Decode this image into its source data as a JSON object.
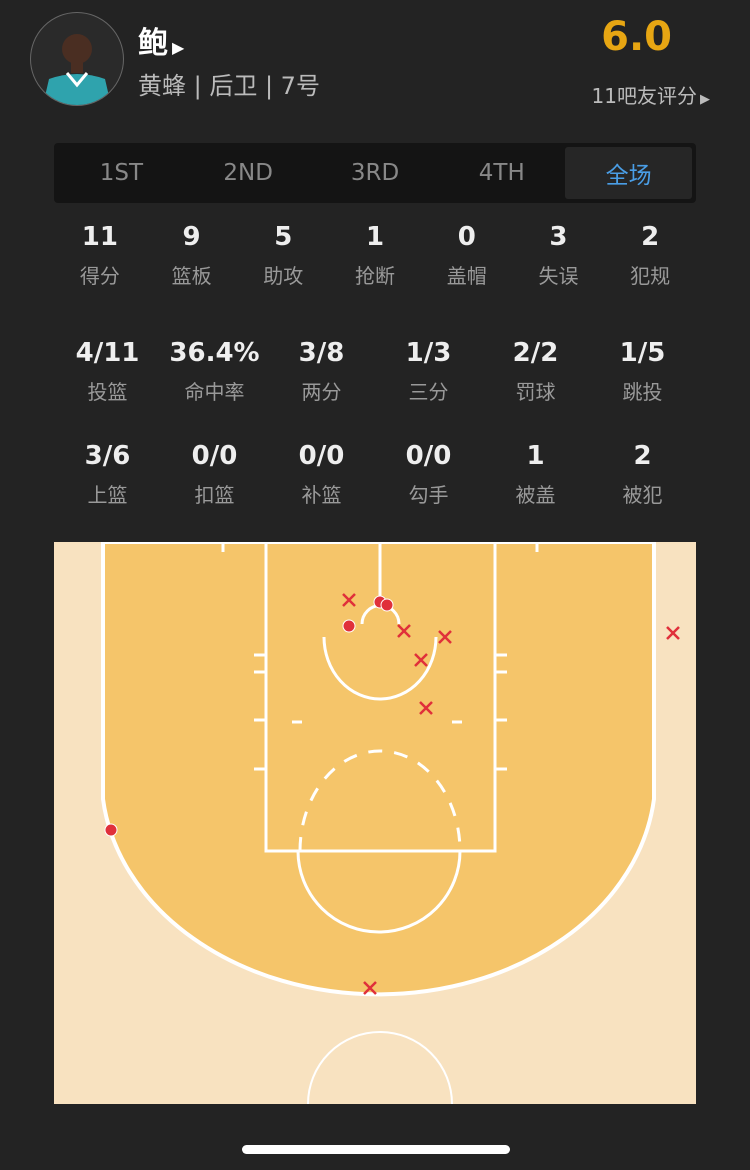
{
  "player": {
    "name": "鲍",
    "info": "黄蜂 | 后卫 | 7号",
    "rating": "6.0",
    "rating_count": "11吧友评分"
  },
  "tabs": [
    {
      "label": "1ST"
    },
    {
      "label": "2ND"
    },
    {
      "label": "3RD"
    },
    {
      "label": "4TH"
    },
    {
      "label": "全场",
      "active": true
    }
  ],
  "stats_row1": [
    {
      "v": "11",
      "l": "得分"
    },
    {
      "v": "9",
      "l": "篮板"
    },
    {
      "v": "5",
      "l": "助攻"
    },
    {
      "v": "1",
      "l": "抢断"
    },
    {
      "v": "0",
      "l": "盖帽"
    },
    {
      "v": "3",
      "l": "失误"
    },
    {
      "v": "2",
      "l": "犯规"
    }
  ],
  "stats_row2": [
    {
      "v": "4/11",
      "l": "投篮"
    },
    {
      "v": "36.4%",
      "l": "命中率"
    },
    {
      "v": "3/8",
      "l": "两分"
    },
    {
      "v": "1/3",
      "l": "三分"
    },
    {
      "v": "2/2",
      "l": "罚球"
    },
    {
      "v": "1/5",
      "l": "跳投"
    }
  ],
  "stats_row3": [
    {
      "v": "3/6",
      "l": "上篮"
    },
    {
      "v": "0/0",
      "l": "扣篮"
    },
    {
      "v": "0/0",
      "l": "补篮"
    },
    {
      "v": "0/0",
      "l": "勾手"
    },
    {
      "v": "1",
      "l": "被盖"
    },
    {
      "v": "2",
      "l": "被犯"
    }
  ],
  "shots": [
    "miss",
    "miss",
    "miss",
    "miss",
    "miss",
    "miss",
    "miss",
    "made",
    "made",
    "made",
    "made"
  ],
  "colors": {
    "accent": "#4a9ee6",
    "rating": "#e7a613",
    "shot": "#e0303a",
    "court_inner": "#f5c56a",
    "court_outer": "#f8e2c0"
  }
}
